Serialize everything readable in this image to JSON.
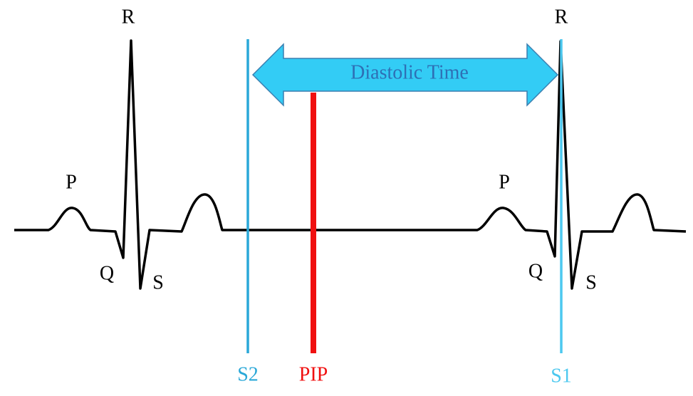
{
  "beats": [
    {
      "P": "P",
      "Q": "Q",
      "R": "R",
      "S": "S"
    },
    {
      "P": "P",
      "Q": "Q",
      "R": "R",
      "S": "S"
    }
  ],
  "arrow": {
    "label": "Diastolic Time"
  },
  "markers": [
    {
      "label": "S2"
    },
    {
      "label": "PIP"
    },
    {
      "label": "S1"
    }
  ]
}
